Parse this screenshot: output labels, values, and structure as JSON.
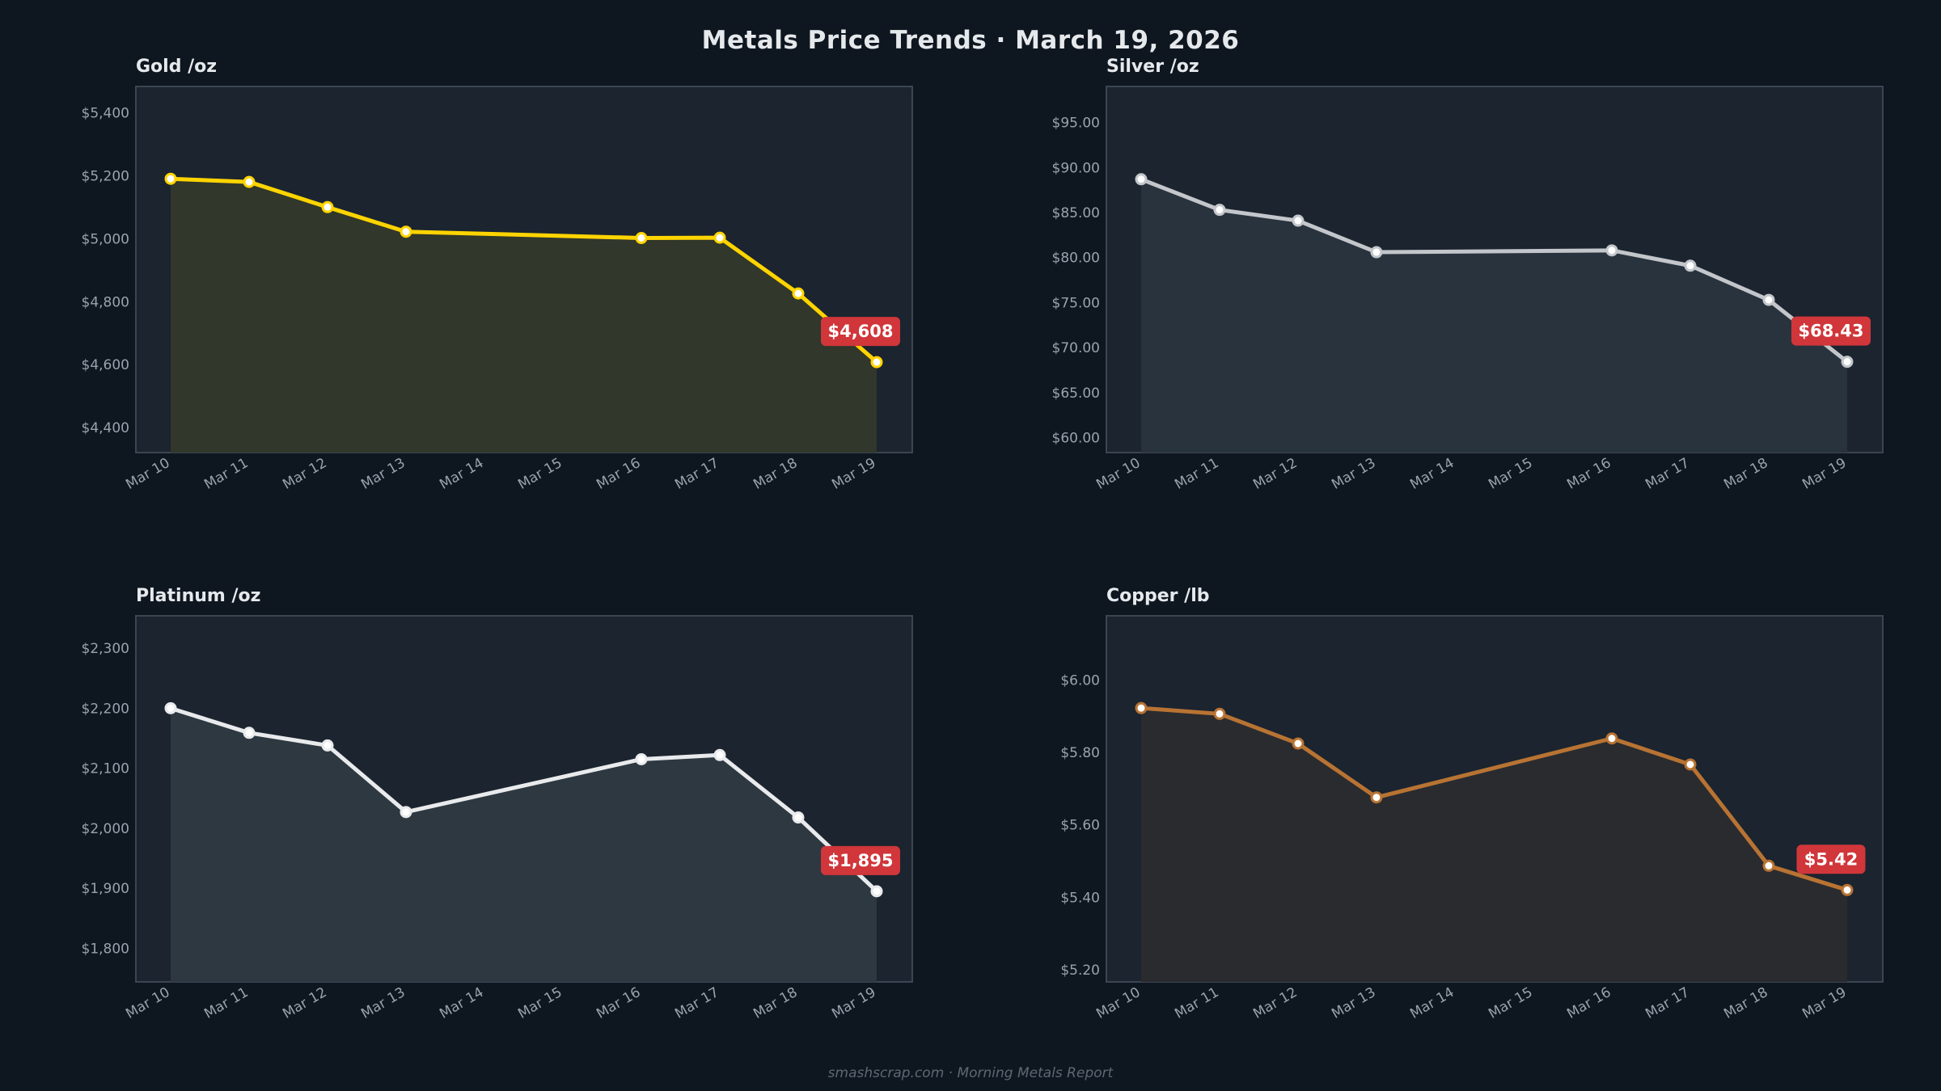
{
  "title": "Metals Price Trends  ·  March 19, 2026",
  "footer": "smashscrap.com  ·  Morning Metals Report",
  "chart_data": [
    {
      "type": "area",
      "title": "Gold  /oz",
      "color": "#ffd400",
      "fill": "#31372a",
      "x": [
        "Mar 10",
        "Mar 11",
        "Mar 12",
        "Mar 13",
        "Mar 14",
        "Mar 15",
        "Mar 16",
        "Mar 17",
        "Mar 18",
        "Mar 19"
      ],
      "points": [
        [
          "Mar 10",
          5190
        ],
        [
          "Mar 11",
          5180
        ],
        [
          "Mar 12",
          5100
        ],
        [
          "Mar 13",
          5022
        ],
        [
          "Mar 16",
          5002
        ],
        [
          "Mar 17",
          5003
        ],
        [
          "Mar 18",
          4826
        ],
        [
          "Mar 19",
          4608
        ]
      ],
      "yticks": [
        4400,
        4600,
        4800,
        5000,
        5200,
        5400
      ],
      "ytick_labels": [
        "$4,400",
        "$4,600",
        "$4,800",
        "$5,000",
        "$5,200",
        "$5,400"
      ],
      "ylim": [
        4321,
        5483
      ],
      "badge": "$4,608"
    },
    {
      "type": "area",
      "title": "Silver  /oz",
      "color": "#c3c6ca",
      "fill": "#29333e",
      "x": [
        "Mar 10",
        "Mar 11",
        "Mar 12",
        "Mar 13",
        "Mar 14",
        "Mar 15",
        "Mar 16",
        "Mar 17",
        "Mar 18",
        "Mar 19"
      ],
      "points": [
        [
          "Mar 10",
          88.7
        ],
        [
          "Mar 11",
          85.3
        ],
        [
          "Mar 12",
          84.1
        ],
        [
          "Mar 13",
          80.6
        ],
        [
          "Mar 16",
          80.8
        ],
        [
          "Mar 17",
          79.1
        ],
        [
          "Mar 18",
          75.3
        ],
        [
          "Mar 19",
          68.43
        ]
      ],
      "yticks": [
        60,
        65,
        70,
        75,
        80,
        85,
        90,
        95
      ],
      "ytick_labels": [
        "$60.00",
        "$65.00",
        "$70.00",
        "$75.00",
        "$80.00",
        "$85.00",
        "$90.00",
        "$95.00"
      ],
      "ylim": [
        58.35,
        99
      ],
      "badge": "$68.43"
    },
    {
      "type": "area",
      "title": "Platinum  /oz",
      "color": "#e8eaec",
      "fill": "#2d3841",
      "x": [
        "Mar 10",
        "Mar 11",
        "Mar 12",
        "Mar 13",
        "Mar 14",
        "Mar 15",
        "Mar 16",
        "Mar 17",
        "Mar 18",
        "Mar 19"
      ],
      "points": [
        [
          "Mar 10",
          2200
        ],
        [
          "Mar 11",
          2159
        ],
        [
          "Mar 12",
          2138
        ],
        [
          "Mar 13",
          2027
        ],
        [
          "Mar 16",
          2115
        ],
        [
          "Mar 17",
          2122
        ],
        [
          "Mar 18",
          2018
        ],
        [
          "Mar 19",
          1895
        ]
      ],
      "yticks": [
        1800,
        1900,
        2000,
        2100,
        2200,
        2300
      ],
      "ytick_labels": [
        "$1,800",
        "$1,900",
        "$2,000",
        "$2,100",
        "$2,200",
        "$2,300"
      ],
      "ylim": [
        1744,
        2354
      ],
      "badge": "$1,895"
    },
    {
      "type": "area",
      "title": "Copper  /lb",
      "color": "#b87333",
      "fill": "#2a2b2f",
      "x": [
        "Mar 10",
        "Mar 11",
        "Mar 12",
        "Mar 13",
        "Mar 14",
        "Mar 15",
        "Mar 16",
        "Mar 17",
        "Mar 18",
        "Mar 19"
      ],
      "points": [
        [
          "Mar 10",
          5.923
        ],
        [
          "Mar 11",
          5.907
        ],
        [
          "Mar 12",
          5.825
        ],
        [
          "Mar 13",
          5.676
        ],
        [
          "Mar 16",
          5.839
        ],
        [
          "Mar 17",
          5.767
        ],
        [
          "Mar 18",
          5.487
        ],
        [
          "Mar 19",
          5.42
        ]
      ],
      "yticks": [
        5.2,
        5.4,
        5.6,
        5.8,
        6.0
      ],
      "ytick_labels": [
        "$5.20",
        "$5.40",
        "$5.60",
        "$5.80",
        "$6.00"
      ],
      "ylim": [
        5.166,
        6.178
      ],
      "badge": "$5.42"
    }
  ],
  "colors": {
    "background": "#0e1620",
    "panel": "#1b242f",
    "border": "#3a4652",
    "badge": "#d0363a"
  }
}
